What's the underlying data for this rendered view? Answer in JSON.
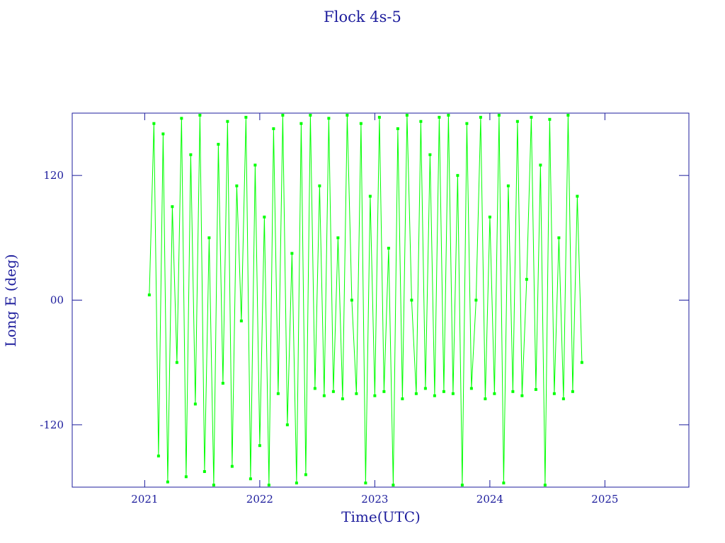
{
  "chart_data": {
    "type": "line",
    "title": "Flock 4s-5",
    "xlabel": "Time(UTC)",
    "ylabel": "Long E (deg)",
    "xlim": [
      2020.37,
      2025.73
    ],
    "xticks": [
      2021,
      2022,
      2023,
      2024,
      2025
    ],
    "ylim": [
      -180,
      180
    ],
    "yticks": [
      -120,
      {
        "value": 0,
        "label": "00"
      },
      120
    ],
    "x": [
      2021.04,
      2021.08,
      2021.12,
      2021.16,
      2021.2,
      2021.24,
      2021.28,
      2021.32,
      2021.36,
      2021.4,
      2021.44,
      2021.48,
      2021.52,
      2021.56,
      2021.6,
      2021.64,
      2021.68,
      2021.72,
      2021.76,
      2021.8,
      2021.84,
      2021.88,
      2021.92,
      2021.96,
      2022.0,
      2022.04,
      2022.08,
      2022.12,
      2022.16,
      2022.2,
      2022.24,
      2022.28,
      2022.32,
      2022.36,
      2022.4,
      2022.44,
      2022.48,
      2022.52,
      2022.56,
      2022.6,
      2022.64,
      2022.68,
      2022.72,
      2022.76,
      2022.8,
      2022.84,
      2022.88,
      2022.92,
      2022.96,
      2023.0,
      2023.04,
      2023.08,
      2023.12,
      2023.16,
      2023.2,
      2023.24,
      2023.28,
      2023.32,
      2023.36,
      2023.4,
      2023.44,
      2023.48,
      2023.52,
      2023.56,
      2023.6,
      2023.64,
      2023.68,
      2023.72,
      2023.76,
      2023.8,
      2023.84,
      2023.88,
      2023.92,
      2023.96,
      2024.0,
      2024.04,
      2024.08,
      2024.12,
      2024.16,
      2024.2,
      2024.24,
      2024.28,
      2024.32,
      2024.36,
      2024.4,
      2024.44,
      2024.48,
      2024.52,
      2024.56,
      2024.6,
      2024.64,
      2024.68,
      2024.72,
      2024.76,
      2024.8
    ],
    "series": [
      {
        "color": "#00ff00",
        "values": [
          5,
          170,
          -150,
          160,
          -175,
          90,
          -60,
          175,
          -170,
          140,
          -100,
          178,
          -165,
          60,
          -178,
          150,
          -80,
          172,
          -160,
          110,
          -20,
          176,
          -172,
          130,
          -140,
          80,
          -178,
          165,
          -90,
          178,
          -120,
          45,
          -176,
          170,
          -168,
          178,
          -85,
          110,
          -92,
          175,
          -88,
          60,
          -95,
          178,
          0,
          -90,
          170,
          -176,
          100,
          -92,
          176,
          -88,
          50,
          -178,
          165,
          -95,
          178,
          0,
          -90,
          172,
          -85,
          140,
          -92,
          176,
          -88,
          178,
          -90,
          120,
          -178,
          170,
          -85,
          0,
          176,
          -95,
          80,
          -90,
          178,
          -176,
          110,
          -88,
          172,
          -92,
          20,
          176,
          -86,
          130,
          -178,
          174,
          -90,
          60,
          -95,
          178,
          -88,
          100,
          -60
        ]
      }
    ]
  }
}
